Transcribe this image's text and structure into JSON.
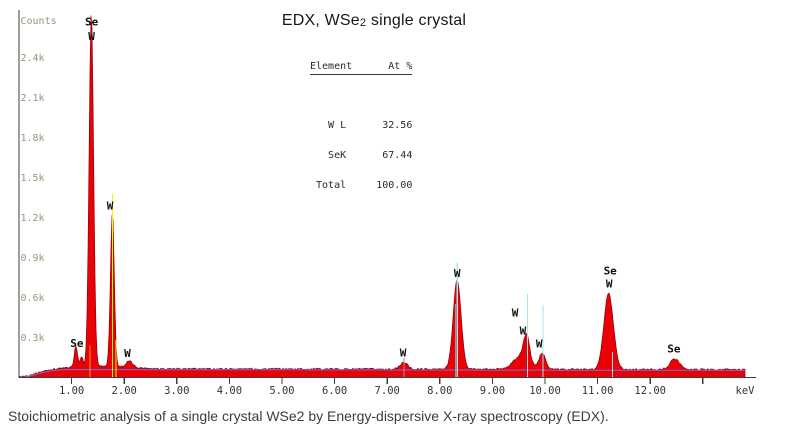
{
  "title": {
    "pre": "EDX, WSe",
    "sub": "2",
    "post": " single crystal"
  },
  "quant_table": {
    "header": "Element      At %",
    "rows": [
      "   W L      32.56",
      "   SeK      67.44",
      " Total     100.00"
    ],
    "values": {
      "W_L_at_percent": "32.56",
      "SeK_at_percent": "67.44",
      "total_at_percent": "100.00"
    }
  },
  "caption": {
    "text": "Stoichiometric analysis of a single crystal WSe2 by Energy-dispersive X-ray spectroscopy (EDX)."
  },
  "chart_data": {
    "type": "area",
    "title": "EDX, WSe2 single crystal",
    "xlabel": "keV",
    "ylabel": "Counts",
    "xlim": [
      0,
      13.8
    ],
    "ylim": [
      0,
      2.8
    ],
    "grid": false,
    "x_unit_label": "keV",
    "y_axis_title": "Counts",
    "x_ticks": [
      {
        "v": 1,
        "label": "1.00"
      },
      {
        "v": 2,
        "label": "2.00"
      },
      {
        "v": 3,
        "label": "3.00"
      },
      {
        "v": 4,
        "label": "4.00"
      },
      {
        "v": 5,
        "label": "5.00"
      },
      {
        "v": 6,
        "label": "6.00"
      },
      {
        "v": 7,
        "label": "7.00"
      },
      {
        "v": 8,
        "label": "8.00"
      },
      {
        "v": 9,
        "label": "9.00"
      },
      {
        "v": 10,
        "label": "10.00"
      },
      {
        "v": 11,
        "label": "11.00"
      },
      {
        "v": 12,
        "label": "12.00"
      },
      {
        "v": 13,
        "label": ""
      }
    ],
    "y_ticks": [
      {
        "k": 0.3,
        "label": "0.3k"
      },
      {
        "k": 0.6,
        "label": "0.6k"
      },
      {
        "k": 0.9,
        "label": "0.9k"
      },
      {
        "k": 1.2,
        "label": "1.2k"
      },
      {
        "k": 1.5,
        "label": "1.5k"
      },
      {
        "k": 1.8,
        "label": "1.8k"
      },
      {
        "k": 2.1,
        "label": "2.1k"
      },
      {
        "k": 2.4,
        "label": "2.4k"
      }
    ],
    "colors": {
      "spectrum_fill": "#ea0007",
      "spectrum_edge": "#8c0004",
      "background_fit": "#7474d4",
      "axis": "#3e3e36",
      "x_tick_label": "#35352c",
      "y_tick_label": "#97977b",
      "peak_label": "#101010",
      "marker_yellow": "#f6f600",
      "marker_orange": "#f0a028",
      "marker_cyan": "#a5e5f0",
      "marker_gray": "#9a9a92"
    },
    "baseline_level_k": 0.06,
    "noise_k": 0.013,
    "peaks": [
      {
        "kev": 1.08,
        "height_k": 0.16,
        "sigma": 0.03,
        "element": "Se"
      },
      {
        "kev": 1.19,
        "height_k": 0.07,
        "sigma": 0.03,
        "element": "Se"
      },
      {
        "kev": 1.375,
        "height_k": 2.66,
        "sigma": 0.042,
        "element": "Se/W"
      },
      {
        "kev": 1.6,
        "height_k": 0.02,
        "sigma": 0.5,
        "element": "background"
      },
      {
        "kev": 1.775,
        "height_k": 1.16,
        "sigma": 0.036,
        "element": "W"
      },
      {
        "kev": 2.1,
        "height_k": 0.045,
        "sigma": 0.06,
        "element": "W"
      },
      {
        "kev": 7.32,
        "height_k": 0.05,
        "sigma": 0.07,
        "element": "W"
      },
      {
        "kev": 8.33,
        "height_k": 0.67,
        "sigma": 0.075,
        "element": "W"
      },
      {
        "kev": 9.55,
        "height_k": 0.1,
        "sigma": 0.15,
        "element": "W"
      },
      {
        "kev": 9.65,
        "height_k": 0.19,
        "sigma": 0.055,
        "element": "W"
      },
      {
        "kev": 9.95,
        "height_k": 0.12,
        "sigma": 0.06,
        "element": "W"
      },
      {
        "kev": 11.21,
        "height_k": 0.57,
        "sigma": 0.09,
        "element": "Se/W"
      },
      {
        "kev": 12.47,
        "height_k": 0.08,
        "sigma": 0.09,
        "element": "Se"
      }
    ],
    "peak_labels": [
      {
        "text": "Se",
        "kev": 1.1,
        "k": 0.23
      },
      {
        "text": "Se",
        "kev": 1.38,
        "k": 2.64
      },
      {
        "text": "W",
        "kev": 1.38,
        "k": 2.53
      },
      {
        "text": "W",
        "kev": 1.73,
        "k": 1.26
      },
      {
        "text": "W",
        "kev": 2.06,
        "k": 0.152
      },
      {
        "text": "W",
        "kev": 7.3,
        "k": 0.158
      },
      {
        "text": "W",
        "kev": 8.33,
        "k": 0.752
      },
      {
        "text": "W",
        "kev": 9.43,
        "k": 0.458
      },
      {
        "text": "W",
        "kev": 9.58,
        "k": 0.323
      },
      {
        "text": "W",
        "kev": 9.89,
        "k": 0.226
      },
      {
        "text": "Se",
        "kev": 11.24,
        "k": 0.773
      },
      {
        "text": "W",
        "kev": 11.22,
        "k": 0.675
      },
      {
        "text": "Se",
        "kev": 12.45,
        "k": 0.188
      }
    ],
    "marker_lines": [
      {
        "kev": 1.35,
        "color_key": "marker_orange",
        "top_k": 0.24
      },
      {
        "kev": 1.775,
        "color_key": "marker_yellow",
        "top_k": 1.38
      },
      {
        "kev": 1.845,
        "color_key": "marker_yellow",
        "top_k": 0.28
      },
      {
        "kev": 7.32,
        "color_key": "marker_gray",
        "top_k": 0.145
      },
      {
        "kev": 8.3,
        "color_key": "marker_gray",
        "top_k": 0.55
      },
      {
        "kev": 8.33,
        "color_key": "marker_cyan",
        "top_k": 0.86
      },
      {
        "kev": 9.67,
        "color_key": "marker_cyan",
        "top_k": 0.625
      },
      {
        "kev": 9.96,
        "color_key": "marker_cyan",
        "top_k": 0.545
      },
      {
        "kev": 11.28,
        "color_key": "marker_cyan",
        "top_k": 0.19
      }
    ]
  }
}
